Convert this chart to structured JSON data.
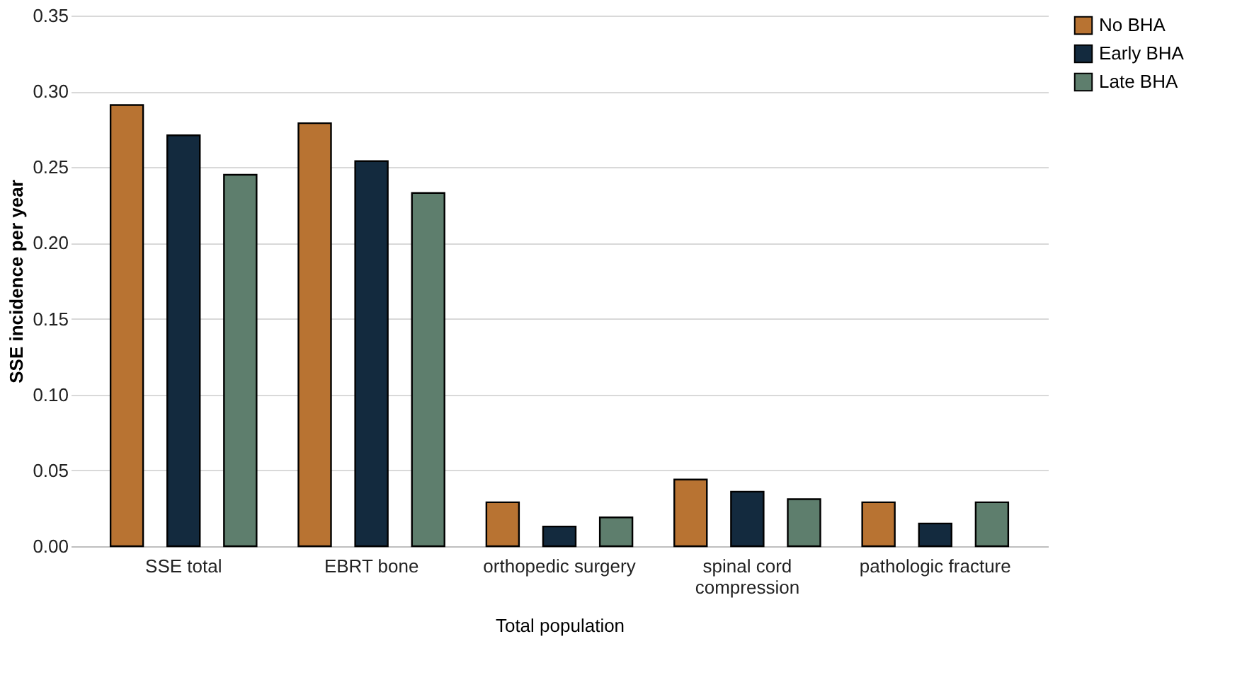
{
  "chart_data": {
    "type": "bar",
    "xlabel": "Total population",
    "ylabel": "SSE incidence per year",
    "categories": [
      "SSE total",
      "EBRT bone",
      "orthopedic surgery",
      "spinal cord compression",
      "pathologic fracture"
    ],
    "series": [
      {
        "name": "No BHA",
        "color": "#b87332",
        "values": [
          0.291,
          0.279,
          0.029,
          0.044,
          0.029
        ]
      },
      {
        "name": "Early BHA",
        "color": "#132a3e",
        "values": [
          0.271,
          0.254,
          0.013,
          0.036,
          0.015
        ]
      },
      {
        "name": "Late BHA",
        "color": "#5e7e6d",
        "values": [
          0.245,
          0.233,
          0.019,
          0.031,
          0.029
        ]
      }
    ],
    "ylim": [
      0,
      0.35
    ],
    "yticks": [
      {
        "value": 0,
        "label": "0.00"
      },
      {
        "value": 0.05,
        "label": "0.05"
      },
      {
        "value": 0.1,
        "label": "0.10"
      },
      {
        "value": 0.15,
        "label": "0.15"
      },
      {
        "value": 0.2,
        "label": "0.20"
      },
      {
        "value": 0.25,
        "label": "0.25"
      },
      {
        "value": 0.3,
        "label": "0.30"
      },
      {
        "value": 0.35,
        "label": "0.35"
      }
    ],
    "grid": "y",
    "legend": "right"
  }
}
